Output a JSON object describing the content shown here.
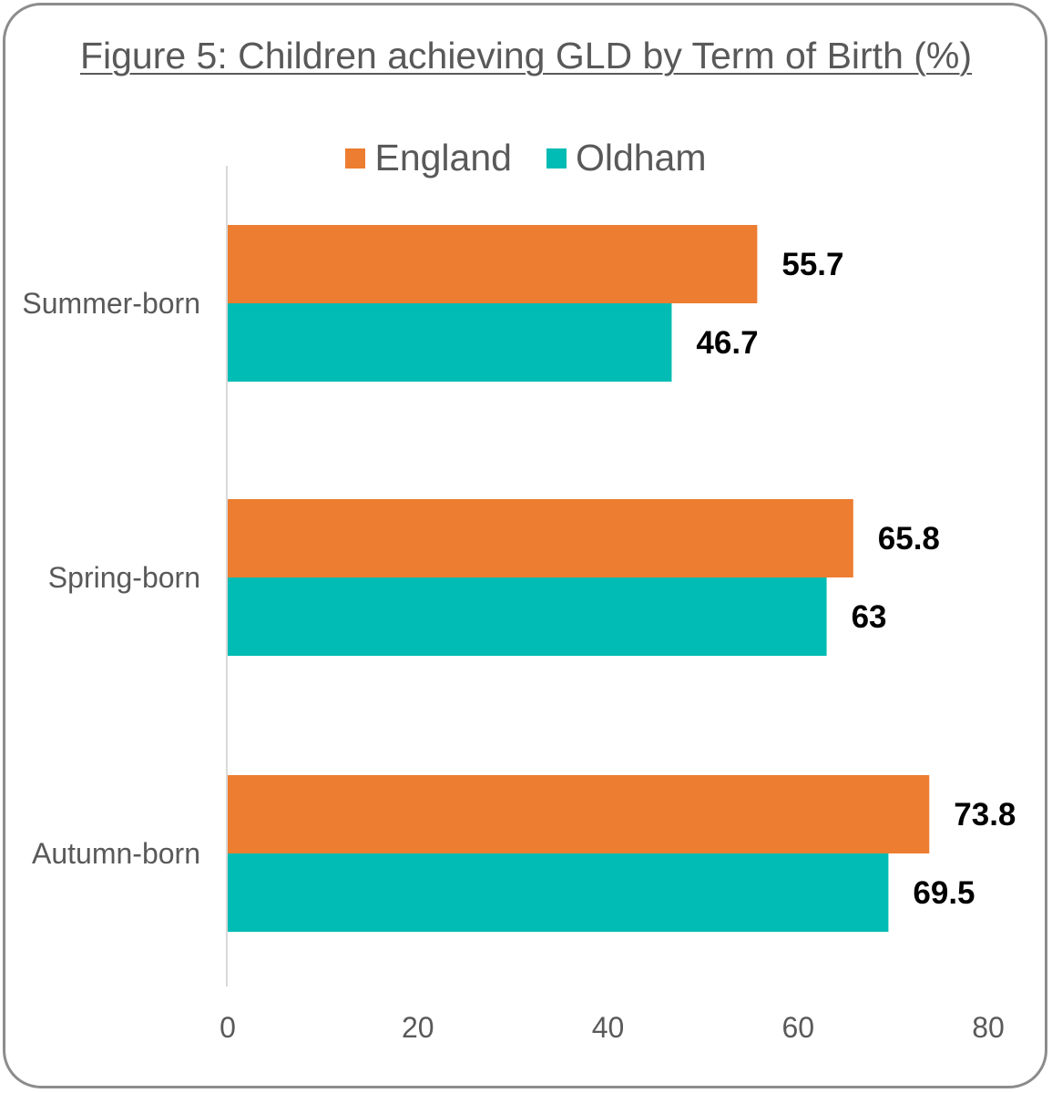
{
  "chart_data": {
    "type": "bar",
    "orientation": "horizontal",
    "title": "Figure 5: Children achieving GLD by Term of Birth (%)",
    "categories": [
      "Summer-born",
      "Spring-born",
      "Autumn-born"
    ],
    "series": [
      {
        "name": "England",
        "color": "#ed7d31",
        "values": [
          55.7,
          65.8,
          73.8
        ]
      },
      {
        "name": "Oldham",
        "color": "#00bcb4",
        "values": [
          46.7,
          63,
          69.5
        ]
      }
    ],
    "xlim": [
      0,
      80
    ],
    "xticks": [
      0,
      20,
      40,
      60,
      80
    ],
    "data_labels": true,
    "legend_position": "top",
    "grid": false
  }
}
